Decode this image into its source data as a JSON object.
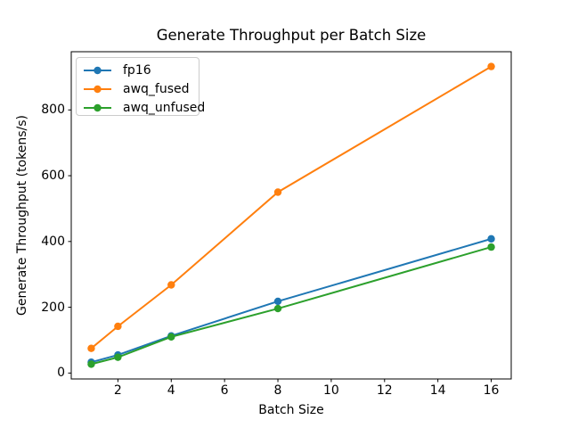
{
  "figure": {
    "title": "Generate Throughput per Batch Size",
    "background_color": "#ffffff",
    "axes_edge_color": "#000000"
  },
  "chart_data": {
    "type": "line",
    "title": "Generate Throughput per Batch Size",
    "xlabel": "Batch Size",
    "ylabel": "Generate Throughput (tokens/s)",
    "x": [
      1,
      2,
      4,
      8,
      16
    ],
    "series": [
      {
        "name": "fp16",
        "color": "#1f77b4",
        "values": [
          33,
          55,
          113,
          218,
          408
        ]
      },
      {
        "name": "awq_fused",
        "color": "#ff7f0e",
        "values": [
          75,
          142,
          268,
          550,
          932
        ]
      },
      {
        "name": "awq_unfused",
        "color": "#2ca02c",
        "values": [
          27,
          48,
          110,
          196,
          383
        ]
      }
    ],
    "xticks": [
      2,
      4,
      6,
      8,
      10,
      12,
      14,
      16
    ],
    "yticks": [
      0,
      200,
      400,
      600,
      800
    ],
    "xlim": [
      0.25,
      16.75
    ],
    "ylim": [
      -18,
      977
    ],
    "grid": false,
    "legend_position": "upper left",
    "marker": "circle",
    "line_width": 2,
    "marker_radius": 4.2
  }
}
